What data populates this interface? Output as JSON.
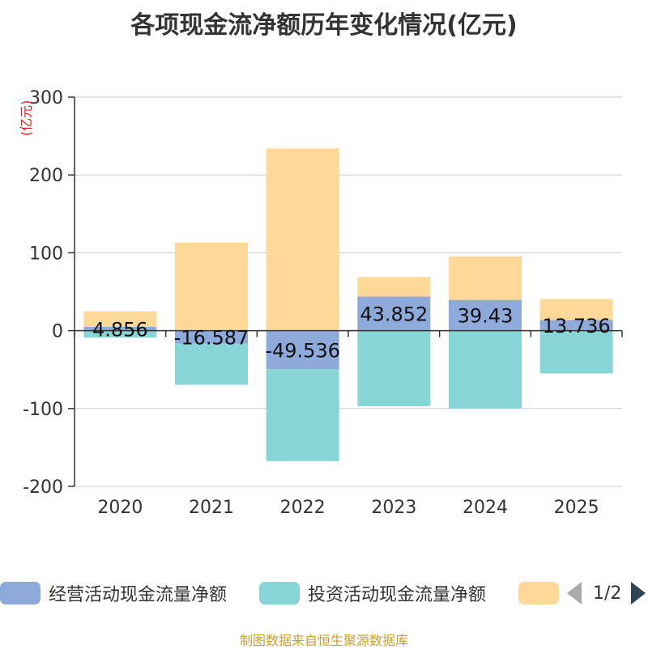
{
  "chart_data": {
    "type": "bar",
    "stacked": true,
    "title": "各项现金流净额历年变化情况(亿元)",
    "ylabel": "(亿元)",
    "ylim": [
      -200,
      300
    ],
    "yticks": [
      -200,
      -100,
      0,
      100,
      200,
      300
    ],
    "categories": [
      "2020",
      "2021",
      "2022",
      "2023",
      "2024",
      "2025"
    ],
    "series": [
      {
        "name": "经营活动现金流量净额",
        "color": "#8eaadb",
        "values": [
          4.856,
          -16.587,
          -49.536,
          43.852,
          39.43,
          13.736
        ],
        "labels": [
          "4.856",
          "-16.587",
          "-49.536",
          "43.852",
          "39.43",
          "13.736"
        ]
      },
      {
        "name": "投资活动现金流量净额",
        "color": "#88d5d8",
        "values": [
          -9,
          -53,
          -118,
          -97,
          -100,
          -55
        ]
      },
      {
        "name": "",
        "color": "#fdd898",
        "values": [
          20,
          113,
          234,
          25,
          56,
          27
        ]
      }
    ]
  },
  "legend": {
    "items": [
      {
        "label": "经营活动现金流量净额",
        "color": "#8eaadb"
      },
      {
        "label": "投资活动现金流量净额",
        "color": "#88d5d8"
      },
      {
        "label": "",
        "color": "#fdd898"
      }
    ],
    "page": "1/2"
  },
  "source": "制图数据来自恒生聚源数据库"
}
